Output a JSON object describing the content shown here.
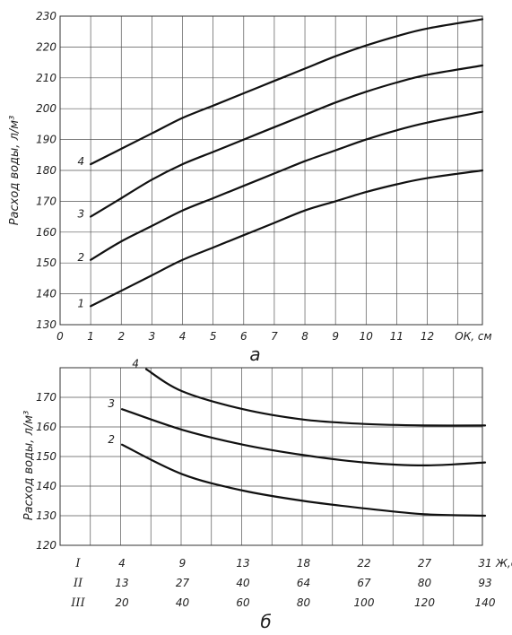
{
  "chart_data": [
    {
      "type": "line",
      "caption": "а",
      "ylabel": "Расход воды, л/м³",
      "xlabel": "ОК, см",
      "xlim": [
        0,
        13.8
      ],
      "ylim": [
        130,
        230
      ],
      "xticks": [
        "0",
        "1",
        "2",
        "3",
        "4",
        "5",
        "6",
        "7",
        "8",
        "9",
        "10",
        "11",
        "12"
      ],
      "yticks": [
        "130",
        "140",
        "150",
        "160",
        "170",
        "180",
        "190",
        "200",
        "210",
        "220",
        "230"
      ],
      "grid": true,
      "series": [
        {
          "name": "1",
          "x": [
            1,
            2,
            3,
            4,
            5,
            6,
            7,
            8,
            9,
            10,
            11,
            12,
            13.8
          ],
          "y": [
            136,
            141,
            146,
            151,
            155,
            159,
            163,
            167,
            170,
            173,
            175.5,
            177.5,
            180
          ]
        },
        {
          "name": "2",
          "x": [
            1,
            2,
            3,
            4,
            5,
            6,
            7,
            8,
            9,
            10,
            11,
            12,
            13.8
          ],
          "y": [
            151,
            157,
            162,
            167,
            171,
            175,
            179,
            183,
            186.5,
            190,
            193,
            195.5,
            199
          ]
        },
        {
          "name": "3",
          "x": [
            1,
            2,
            3,
            4,
            5,
            6,
            7,
            8,
            9,
            10,
            11,
            12,
            13.8
          ],
          "y": [
            165,
            171,
            177,
            182,
            186,
            190,
            194,
            198,
            202,
            205.5,
            208.5,
            211,
            214
          ]
        },
        {
          "name": "4",
          "x": [
            1,
            2,
            3,
            4,
            5,
            6,
            7,
            8,
            9,
            10,
            11,
            12,
            13.8
          ],
          "y": [
            182,
            187,
            192,
            197,
            201,
            205,
            209,
            213,
            217,
            220.5,
            223.5,
            226,
            229
          ]
        }
      ]
    },
    {
      "type": "line",
      "caption": "б",
      "ylabel": "Расход воды, л/м³",
      "xlabel": "Ж,с",
      "ylim": [
        120,
        180
      ],
      "yticks": [
        "120",
        "130",
        "140",
        "150",
        "160",
        "170"
      ],
      "grid": true,
      "xrows": [
        {
          "label": "I",
          "values": [
            "4",
            "9",
            "13",
            "18",
            "22",
            "27",
            "31"
          ]
        },
        {
          "label": "II",
          "values": [
            "13",
            "27",
            "40",
            "64",
            "67",
            "80",
            "93"
          ]
        },
        {
          "label": "III",
          "values": [
            "20",
            "40",
            "60",
            "80",
            "100",
            "120",
            "140"
          ]
        }
      ],
      "series": [
        {
          "name": "2",
          "x": [
            20,
            40,
            60,
            80,
            100,
            120,
            140
          ],
          "y": [
            154,
            144,
            138.5,
            135,
            132.5,
            130.5,
            130
          ]
        },
        {
          "name": "3",
          "x": [
            20,
            40,
            60,
            80,
            100,
            120,
            140
          ],
          "y": [
            166,
            159,
            154,
            150.5,
            148,
            147,
            148
          ]
        },
        {
          "name": "4",
          "x": [
            28,
            40,
            60,
            80,
            100,
            120,
            140
          ],
          "y": [
            179.5,
            172,
            166,
            162.5,
            161,
            160.5,
            160.5
          ]
        }
      ]
    }
  ]
}
